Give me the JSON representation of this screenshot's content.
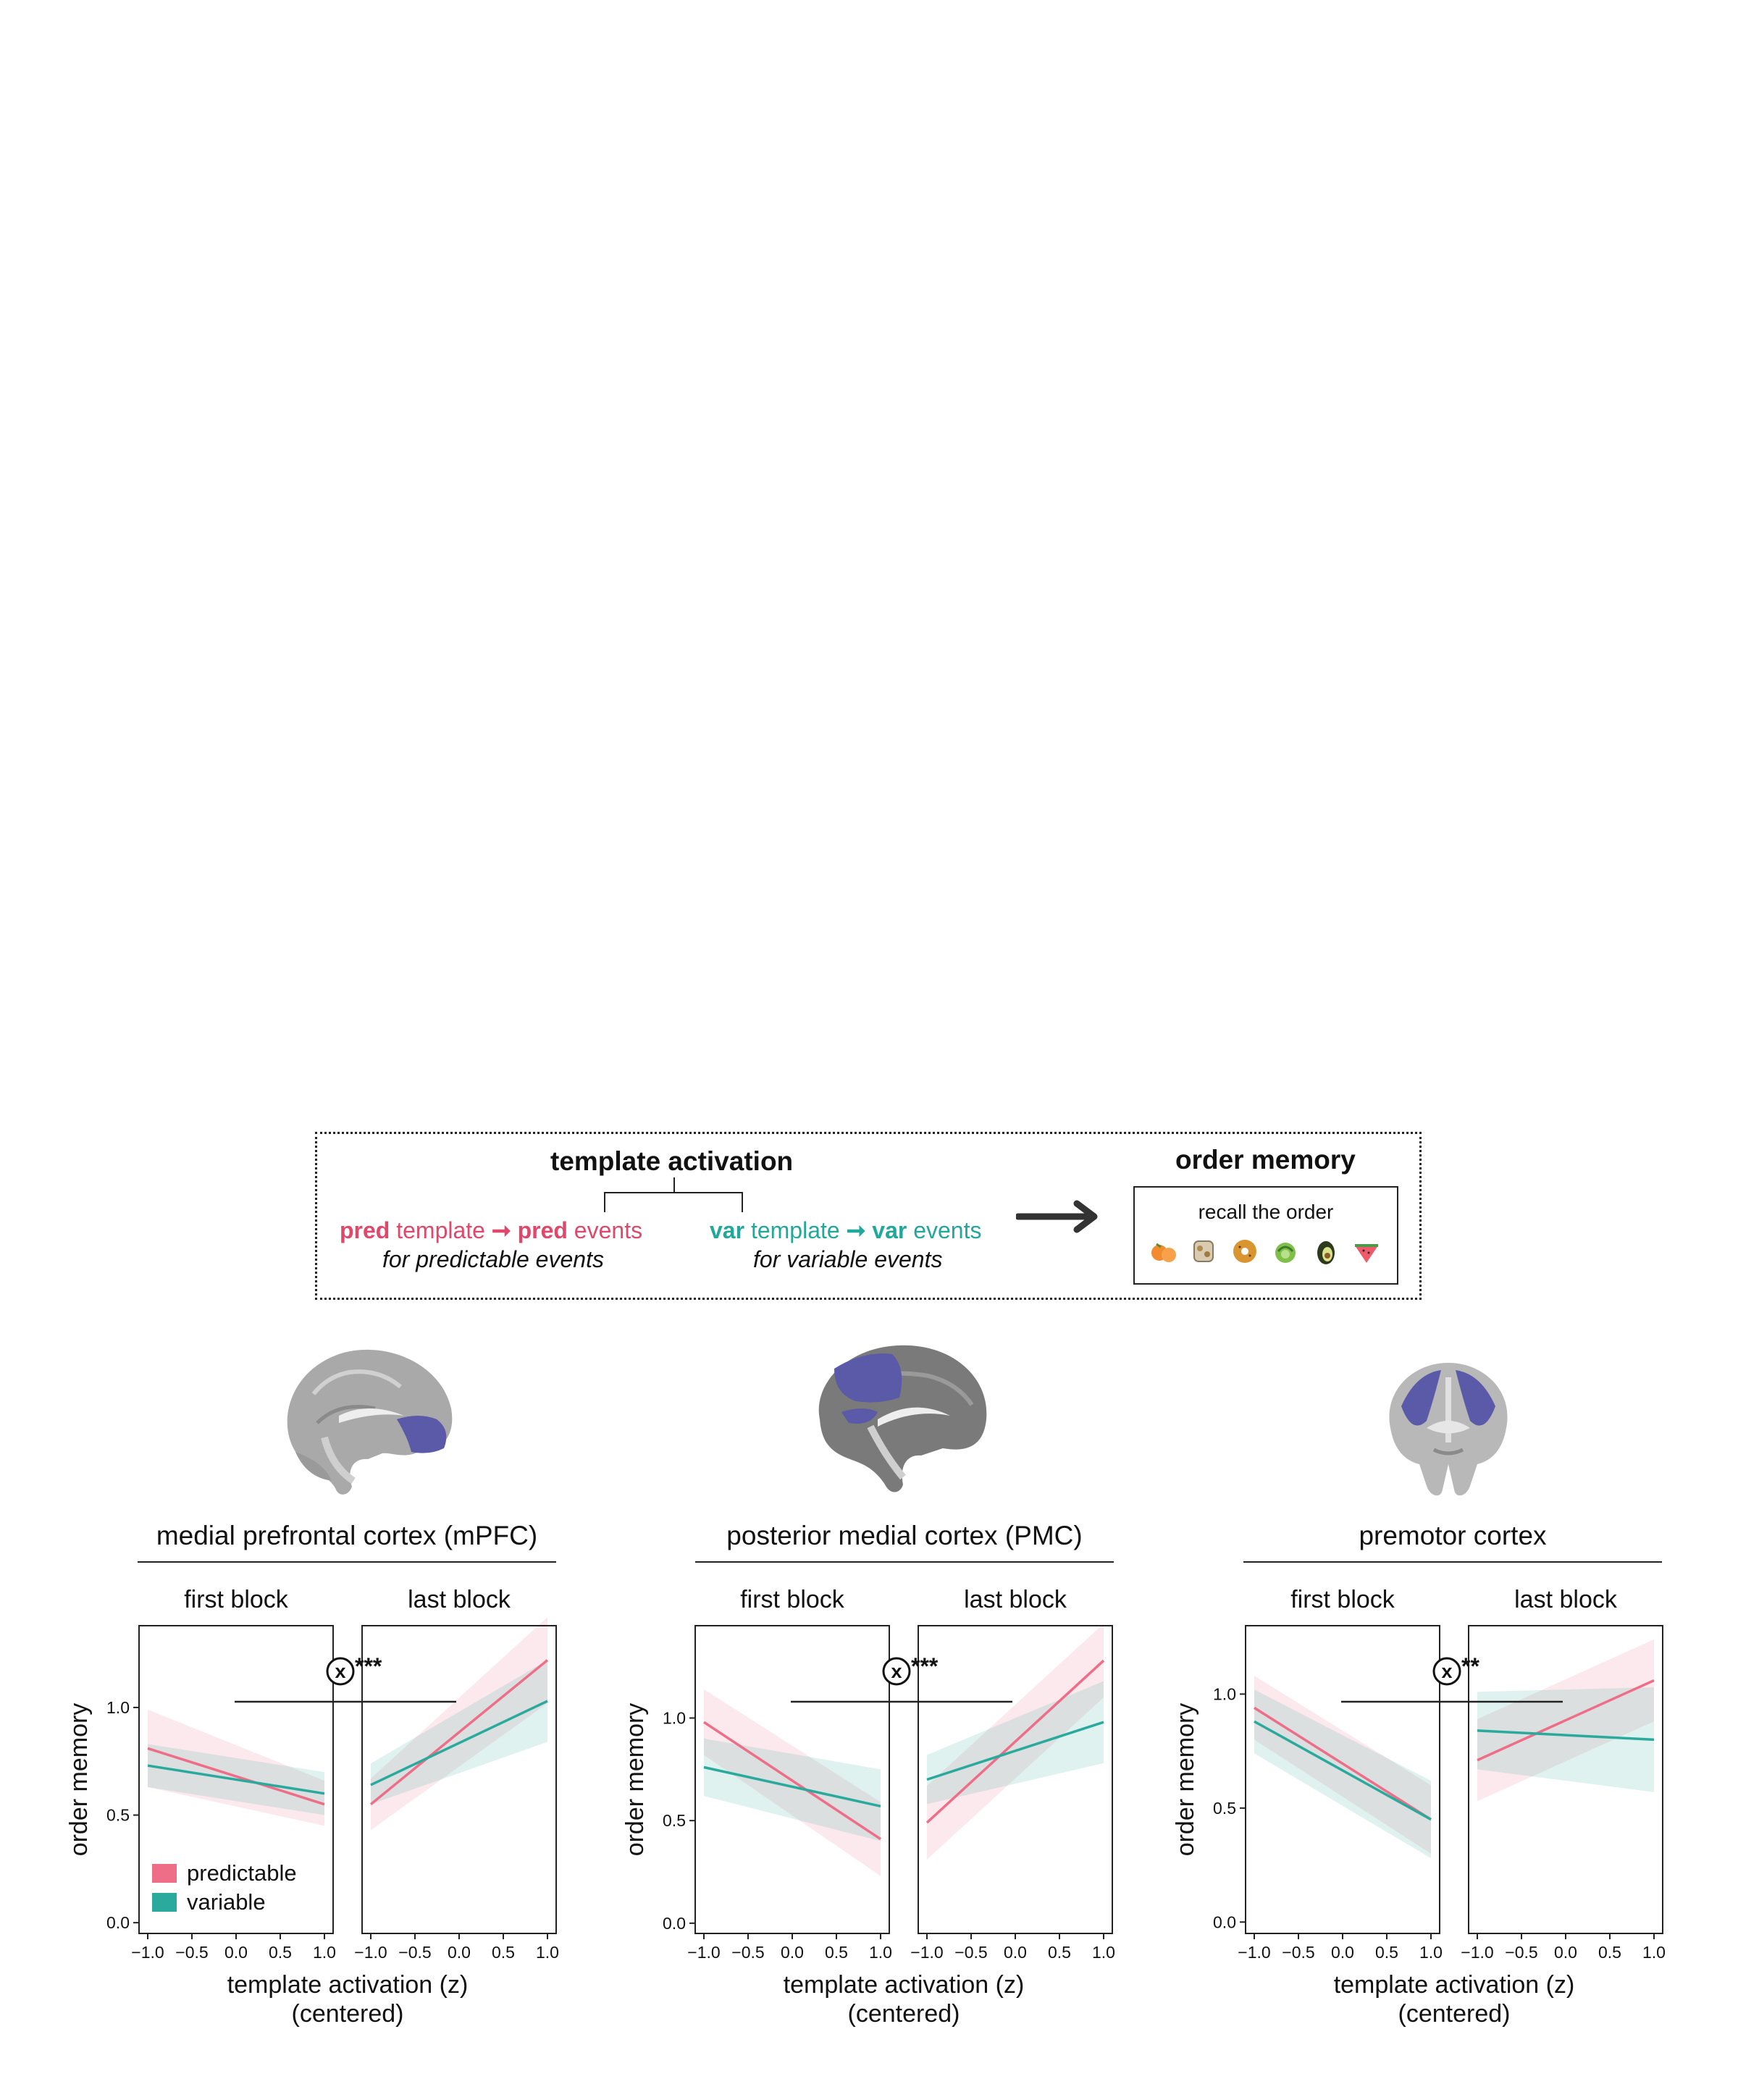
{
  "schema": {
    "template_title": "template activation",
    "order_title": "order memory",
    "pred_line": {
      "w1": "pred",
      "w2": "template",
      "arrow": "➞",
      "w3": "pred",
      "w4": "events"
    },
    "pred_sub": "for predictable events",
    "var_line": {
      "w1": "var",
      "w2": "template",
      "arrow": "➞",
      "w3": "var",
      "w4": "events"
    },
    "var_sub": "for variable events",
    "recall_label": "recall the order",
    "foods": [
      "orange-food-icon",
      "nuts-food-icon",
      "bagel-food-icon",
      "cabbage-food-icon",
      "avocado-food-icon",
      "watermelon-food-icon"
    ]
  },
  "colors": {
    "predictable": "#ee6d87",
    "variable": "#2aaa9d",
    "predictable_text": "#e0486b",
    "variable_text": "#22a89a",
    "roi": "#5a5aa8"
  },
  "brains": [
    {
      "region": "medial prefrontal cortex (mPFC)",
      "view": "sagittal",
      "highlight": "mPFC"
    },
    {
      "region": "posterior medial cortex (PMC)",
      "view": "sagittal",
      "highlight": "PMC"
    },
    {
      "region": "premotor cortex",
      "view": "coronal",
      "highlight": "premotor"
    }
  ],
  "chart_data": [
    {
      "type": "line",
      "title": "medial prefrontal cortex (mPFC)",
      "facets": [
        "first block",
        "last block"
      ],
      "ylabel": "order memory",
      "xlabel": "template activation (z)",
      "xlabel2": "(centered)",
      "xlim": [
        -1.0,
        1.0
      ],
      "xticks": [
        "−1.0",
        "−0.5",
        "0.0",
        "0.5",
        "1.0"
      ],
      "yticks": [
        "0.0",
        "0.5",
        "1.0"
      ],
      "ylim": [
        -0.05,
        1.38
      ],
      "significance": "***",
      "interaction_symbol": "x",
      "legend": {
        "placement": "bottom-left",
        "entries": [
          "predictable",
          "variable"
        ]
      },
      "series": [
        {
          "name": "predictable",
          "facets": [
            {
              "x": [
                -1.0,
                1.0
              ],
              "y": [
                0.81,
                0.55
              ],
              "lo": [
                0.63,
                0.45
              ],
              "hi": [
                0.99,
                0.66
              ]
            },
            {
              "x": [
                -1.0,
                1.0
              ],
              "y": [
                0.55,
                1.22
              ],
              "lo": [
                0.43,
                1.02
              ],
              "hi": [
                0.67,
                1.42
              ]
            }
          ]
        },
        {
          "name": "variable",
          "facets": [
            {
              "x": [
                -1.0,
                1.0
              ],
              "y": [
                0.73,
                0.6
              ],
              "lo": [
                0.63,
                0.5
              ],
              "hi": [
                0.83,
                0.7
              ]
            },
            {
              "x": [
                -1.0,
                1.0
              ],
              "y": [
                0.64,
                1.03
              ],
              "lo": [
                0.55,
                0.84
              ],
              "hi": [
                0.74,
                1.22
              ]
            }
          ]
        }
      ]
    },
    {
      "type": "line",
      "title": "posterior medial cortex (PMC)",
      "facets": [
        "first block",
        "last block"
      ],
      "ylabel": "order memory",
      "xlabel": "template activation (z)",
      "xlabel2": "(centered)",
      "xlim": [
        -1.0,
        1.0
      ],
      "xticks": [
        "−1.0",
        "−0.5",
        "0.0",
        "0.5",
        "1.0"
      ],
      "yticks": [
        "0.0",
        "0.5",
        "1.0"
      ],
      "ylim": [
        -0.05,
        1.45
      ],
      "significance": "***",
      "interaction_symbol": "x",
      "series": [
        {
          "name": "predictable",
          "facets": [
            {
              "x": [
                -1.0,
                1.0
              ],
              "y": [
                0.98,
                0.41
              ],
              "lo": [
                0.82,
                0.23
              ],
              "hi": [
                1.14,
                0.59
              ]
            },
            {
              "x": [
                -1.0,
                1.0
              ],
              "y": [
                0.49,
                1.28
              ],
              "lo": [
                0.31,
                1.1
              ],
              "hi": [
                0.67,
                1.46
              ]
            }
          ]
        },
        {
          "name": "variable",
          "facets": [
            {
              "x": [
                -1.0,
                1.0
              ],
              "y": [
                0.76,
                0.57
              ],
              "lo": [
                0.62,
                0.4
              ],
              "hi": [
                0.9,
                0.75
              ]
            },
            {
              "x": [
                -1.0,
                1.0
              ],
              "y": [
                0.7,
                0.98
              ],
              "lo": [
                0.58,
                0.78
              ],
              "hi": [
                0.82,
                1.18
              ]
            }
          ]
        }
      ]
    },
    {
      "type": "line",
      "title": "premotor cortex",
      "facets": [
        "first block",
        "last block"
      ],
      "ylabel": "order memory",
      "xlabel": "template activation (z)",
      "xlabel2": "(centered)",
      "xlim": [
        -1.0,
        1.0
      ],
      "xticks": [
        "−1.0",
        "−0.5",
        "0.0",
        "0.5",
        "1.0"
      ],
      "yticks": [
        "0.0",
        "0.5",
        "1.0"
      ],
      "ylim": [
        -0.05,
        1.3
      ],
      "significance": "**",
      "interaction_symbol": "x",
      "series": [
        {
          "name": "predictable",
          "facets": [
            {
              "x": [
                -1.0,
                1.0
              ],
              "y": [
                0.94,
                0.45
              ],
              "lo": [
                0.8,
                0.3
              ],
              "hi": [
                1.08,
                0.6
              ]
            },
            {
              "x": [
                -1.0,
                1.0
              ],
              "y": [
                0.71,
                1.06
              ],
              "lo": [
                0.53,
                0.88
              ],
              "hi": [
                0.89,
                1.24
              ]
            }
          ]
        },
        {
          "name": "variable",
          "facets": [
            {
              "x": [
                -1.0,
                1.0
              ],
              "y": [
                0.88,
                0.45
              ],
              "lo": [
                0.74,
                0.28
              ],
              "hi": [
                1.02,
                0.62
              ]
            },
            {
              "x": [
                -1.0,
                1.0
              ],
              "y": [
                0.84,
                0.8
              ],
              "lo": [
                0.67,
                0.57
              ],
              "hi": [
                1.01,
                1.03
              ]
            }
          ]
        }
      ]
    }
  ]
}
